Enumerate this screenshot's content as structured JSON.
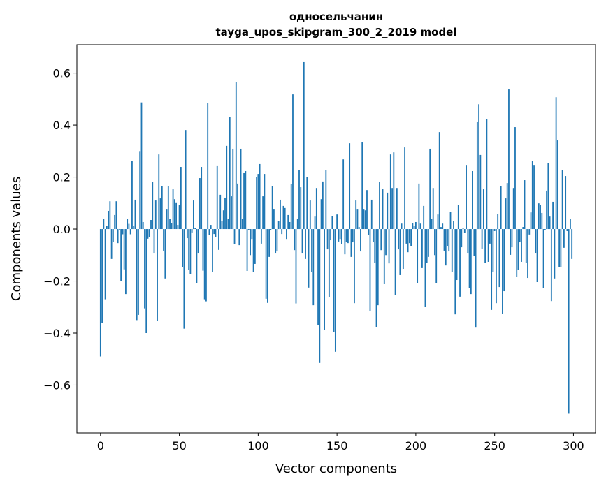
{
  "chart_data": {
    "type": "bar",
    "title": [
      "односельчанин",
      "tayga_upos_skipgram_300_2_2019 model"
    ],
    "xlabel": "Vector components",
    "ylabel": "Components values",
    "xlim": [
      -15,
      314
    ],
    "ylim": [
      -0.784,
      0.709
    ],
    "xticks": [
      0,
      50,
      100,
      150,
      200,
      250,
      300
    ],
    "xtick_labels": [
      "0",
      "50",
      "100",
      "150",
      "200",
      "250",
      "300"
    ],
    "yticks": [
      -0.6,
      -0.4,
      -0.2,
      0.0,
      0.2,
      0.4,
      0.6
    ],
    "ytick_labels": [
      "−0.6",
      "−0.4",
      "−0.2",
      "0.0",
      "0.2",
      "0.4",
      "0.6"
    ],
    "grid": false,
    "bar_color": "#1f77b4",
    "values": [
      -0.49,
      -0.36,
      0.04,
      -0.27,
      0.013,
      0.07,
      0.107,
      -0.115,
      -0.05,
      0.054,
      0.107,
      -0.054,
      -0.002,
      -0.2,
      -0.02,
      -0.155,
      -0.25,
      0.04,
      0.02,
      -0.02,
      0.263,
      0.013,
      0.113,
      -0.35,
      -0.33,
      0.3,
      0.487,
      0.027,
      -0.305,
      -0.4,
      -0.037,
      -0.03,
      0.035,
      0.18,
      -0.094,
      0.11,
      -0.353,
      0.287,
      0.118,
      0.166,
      -0.083,
      -0.19,
      0.075,
      0.166,
      0.04,
      0.024,
      0.153,
      0.115,
      0.1,
      0.016,
      0.094,
      0.239,
      -0.145,
      -0.383,
      0.381,
      -0.035,
      -0.157,
      -0.174,
      -0.013,
      0.11,
      0.005,
      -0.207,
      -0.094,
      0.196,
      0.239,
      -0.16,
      -0.27,
      -0.278,
      0.486,
      -0.024,
      0.016,
      -0.164,
      -0.019,
      -0.03,
      0.242,
      -0.08,
      0.132,
      0.032,
      0.072,
      0.121,
      0.32,
      0.038,
      0.432,
      0.126,
      0.309,
      -0.059,
      0.564,
      0.175,
      -0.062,
      0.309,
      0.04,
      0.215,
      0.223,
      -0.161,
      -0.003,
      -0.1,
      -0.038,
      -0.164,
      -0.134,
      0.2,
      0.212,
      0.25,
      -0.056,
      0.126,
      0.212,
      -0.268,
      -0.284,
      -0.107,
      -0.005,
      0.164,
      0.075,
      -0.094,
      -0.086,
      0.032,
      0.113,
      -0.019,
      0.089,
      0.081,
      -0.038,
      0.054,
      0.027,
      0.172,
      0.518,
      -0.081,
      -0.286,
      0.038,
      0.226,
      0.161,
      -0.094,
      0.642,
      -0.115,
      0.199,
      -0.225,
      0.11,
      -0.166,
      -0.293,
      0.048,
      0.158,
      -0.37,
      -0.515,
      0.115,
      0.183,
      -0.387,
      0.226,
      -0.078,
      -0.263,
      -0.043,
      0.051,
      -0.395,
      -0.472,
      0.056,
      -0.048,
      -0.038,
      -0.059,
      0.268,
      -0.097,
      -0.051,
      -0.054,
      0.33,
      -0.107,
      -0.051,
      -0.285,
      0.11,
      0.075,
      0.008,
      -0.086,
      0.333,
      0.075,
      0.072,
      0.15,
      -0.024,
      -0.314,
      0.113,
      -0.051,
      -0.129,
      -0.376,
      -0.293,
      0.18,
      -0.081,
      0.153,
      -0.212,
      -0.1,
      0.14,
      -0.132,
      0.287,
      0.158,
      0.295,
      -0.255,
      0.158,
      -0.078,
      -0.177,
      0.021,
      -0.153,
      0.314,
      -0.056,
      -0.089,
      -0.054,
      -0.067,
      0.024,
      0.013,
      0.027,
      -0.207,
      0.175,
      0.021,
      -0.15,
      0.089,
      -0.298,
      -0.129,
      -0.107,
      0.309,
      0.04,
      0.158,
      -0.1,
      -0.207,
      0.056,
      0.373,
      0.008,
      0.021,
      -0.083,
      -0.14,
      -0.067,
      -0.086,
      0.067,
      -0.166,
      0.032,
      -0.328,
      -0.196,
      0.094,
      -0.26,
      -0.07,
      0.005,
      -0.016,
      0.244,
      -0.094,
      -0.228,
      -0.25,
      0.223,
      -0.102,
      -0.379,
      0.411,
      0.48,
      0.285,
      -0.075,
      0.153,
      -0.129,
      0.424,
      -0.126,
      -0.056,
      -0.311,
      -0.164,
      -0.008,
      -0.285,
      0.059,
      -0.223,
      0.164,
      -0.325,
      -0.239,
      0.118,
      0.177,
      0.537,
      -0.099,
      -0.07,
      0.158,
      0.392,
      -0.183,
      -0.156,
      -0.051,
      -0.126,
      0.008,
      0.188,
      -0.129,
      -0.188,
      -0.021,
      0.064,
      0.263,
      0.244,
      -0.094,
      -0.204,
      0.099,
      0.094,
      0.062,
      -0.228,
      -0.003,
      0.148,
      0.255,
      0.048,
      -0.277,
      0.105,
      -0.19,
      0.507,
      0.341,
      -0.145,
      -0.145,
      0.228,
      -0.072,
      0.204,
      -0.008,
      -0.71,
      0.038,
      -0.115
    ]
  }
}
